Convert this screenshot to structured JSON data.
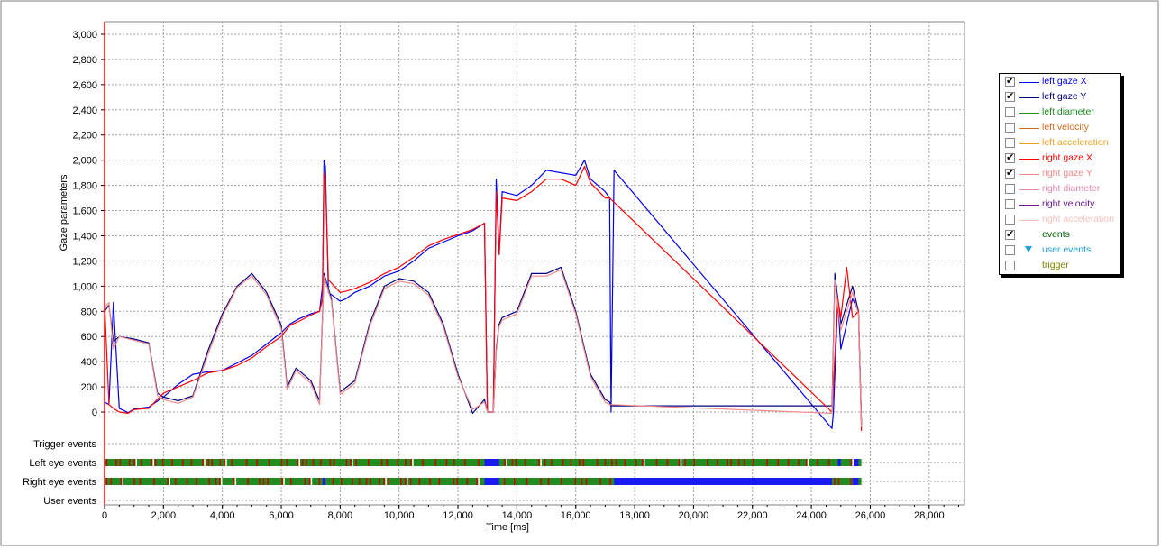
{
  "chart_data": {
    "type": "line",
    "xlabel": "Time [ms]",
    "ylabel": "Gaze parameters",
    "xlim": [
      0,
      29200
    ],
    "ylim": [
      -150,
      3100
    ],
    "x_ticks": [
      "0",
      "2,000",
      "4,000",
      "6,000",
      "8,000",
      "10,000",
      "12,000",
      "14,000",
      "16,000",
      "18,000",
      "20,000",
      "22,000",
      "24,000",
      "26,000",
      "28,000"
    ],
    "y_ticks": [
      "0",
      "200",
      "400",
      "600",
      "800",
      "1,000",
      "1,200",
      "1,400",
      "1,600",
      "1,800",
      "2,000",
      "2,200",
      "2,400",
      "2,600",
      "2,800",
      "3,000"
    ],
    "grid": true,
    "legend_position": "right",
    "event_rows": [
      "Trigger events",
      "Left eye events",
      "Right eye events",
      "User events"
    ],
    "series": [
      {
        "name": "left gaze X",
        "color": "#0000ee",
        "x": [
          0,
          150,
          300,
          500,
          800,
          1000,
          1500,
          2000,
          2500,
          3000,
          3500,
          4000,
          4500,
          5000,
          5500,
          6000,
          6300,
          6600,
          7000,
          7300,
          7400,
          7450,
          7500,
          7600,
          8000,
          8200,
          8500,
          9000,
          9500,
          10000,
          10500,
          11000,
          11500,
          12000,
          12500,
          12900,
          13000,
          13200,
          13300,
          13400,
          13500,
          14000,
          14500,
          15000,
          15500,
          16000,
          16300,
          16500,
          17000,
          17150,
          17200,
          17300,
          24700,
          24750,
          24900,
          25000,
          25200,
          25400,
          25600,
          25700
        ],
        "y": [
          80,
          60,
          870,
          30,
          -5,
          25,
          40,
          120,
          220,
          300,
          320,
          330,
          390,
          450,
          540,
          630,
          700,
          740,
          780,
          800,
          1000,
          2000,
          1950,
          950,
          880,
          900,
          950,
          1000,
          1080,
          1120,
          1200,
          1300,
          1350,
          1400,
          1440,
          1500,
          0,
          0,
          1850,
          1250,
          1750,
          1720,
          1800,
          1920,
          1900,
          1880,
          2000,
          1850,
          1750,
          1700,
          0,
          1920,
          -130,
          0,
          900,
          500,
          700,
          900,
          800,
          -100
        ]
      },
      {
        "name": "left gaze Y",
        "color": "#000080",
        "x": [
          0,
          150,
          300,
          500,
          1000,
          1500,
          1800,
          2000,
          2500,
          3000,
          3500,
          4000,
          4500,
          5000,
          5500,
          6000,
          6200,
          6500,
          7000,
          7300,
          7450,
          7700,
          8000,
          8500,
          9000,
          9500,
          10000,
          10500,
          11000,
          11500,
          12000,
          12500,
          12900,
          13000,
          13200,
          13300,
          13400,
          13500,
          14000,
          14500,
          15000,
          15500,
          16000,
          16500,
          17000,
          17150,
          17200,
          24700,
          24800,
          25000,
          25200,
          25400,
          25600,
          25700
        ],
        "y": [
          800,
          850,
          560,
          600,
          580,
          550,
          150,
          120,
          90,
          130,
          480,
          780,
          1000,
          1100,
          950,
          690,
          200,
          350,
          250,
          90,
          1100,
          900,
          160,
          250,
          700,
          1000,
          1060,
          1040,
          950,
          700,
          300,
          -10,
          100,
          0,
          0,
          500,
          700,
          750,
          800,
          1100,
          1100,
          1150,
          800,
          300,
          100,
          80,
          50,
          50,
          1100,
          700,
          850,
          1000,
          800,
          -100
        ]
      },
      {
        "name": "right gaze X",
        "color": "#ff0000",
        "x": [
          0,
          150,
          300,
          500,
          800,
          1000,
          1500,
          2000,
          2500,
          3000,
          3500,
          4000,
          4500,
          5000,
          5500,
          6000,
          6300,
          6600,
          7000,
          7300,
          7400,
          7450,
          7500,
          7600,
          8000,
          8200,
          8500,
          9000,
          9500,
          10000,
          10500,
          11000,
          11500,
          12000,
          12500,
          12900,
          13000,
          13200,
          13300,
          13400,
          13500,
          14000,
          14500,
          15000,
          15500,
          16000,
          16300,
          16500,
          17000,
          17150,
          24700,
          24900,
          25000,
          25200,
          25400,
          25600,
          25700
        ],
        "y": [
          870,
          60,
          30,
          0,
          -10,
          20,
          30,
          150,
          200,
          250,
          310,
          330,
          370,
          430,
          520,
          600,
          690,
          720,
          770,
          800,
          900,
          1900,
          1850,
          1050,
          950,
          960,
          980,
          1030,
          1100,
          1150,
          1230,
          1320,
          1370,
          1410,
          1450,
          1500,
          0,
          0,
          1750,
          1250,
          1700,
          1680,
          1750,
          1850,
          1850,
          1800,
          1950,
          1820,
          1700,
          1700,
          0,
          900,
          750,
          1150,
          750,
          800,
          -150
        ]
      },
      {
        "name": "right gaze Y",
        "color": "#ee8a8a",
        "x": [
          0,
          150,
          300,
          500,
          1000,
          1500,
          1800,
          2000,
          2500,
          3000,
          3500,
          4000,
          4500,
          5000,
          5500,
          6000,
          6200,
          6500,
          7000,
          7300,
          7450,
          7700,
          8000,
          8500,
          9000,
          9500,
          10000,
          10500,
          11000,
          11500,
          12000,
          12500,
          12900,
          13000,
          13200,
          13300,
          13400,
          13500,
          14000,
          14500,
          15000,
          15500,
          16000,
          16500,
          17000,
          17150,
          24700,
          24800,
          25000,
          25200,
          25400,
          25600,
          25700
        ],
        "y": [
          830,
          870,
          500,
          600,
          570,
          540,
          130,
          100,
          70,
          120,
          450,
          760,
          990,
          1080,
          930,
          660,
          180,
          330,
          230,
          60,
          1080,
          880,
          140,
          230,
          680,
          980,
          1040,
          1020,
          930,
          680,
          280,
          20,
          80,
          0,
          0,
          480,
          680,
          730,
          780,
          1080,
          1080,
          1130,
          780,
          280,
          80,
          60,
          -10,
          1050,
          650,
          800,
          950,
          780,
          -120
        ]
      }
    ]
  }
}
